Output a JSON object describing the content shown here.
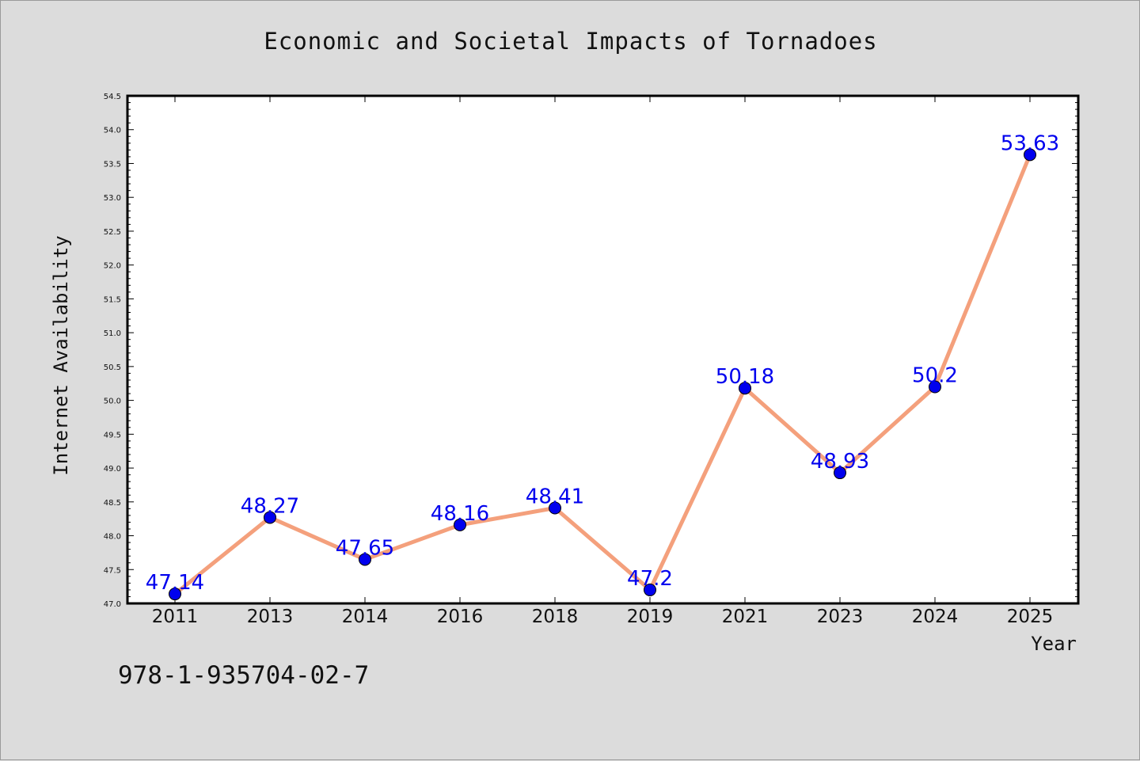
{
  "footer": {
    "code": "978-1-935704-02-7"
  },
  "colors": {
    "background": "#dcdcdc",
    "plot_bg": "#ffffff",
    "line": "#f4a07c",
    "marker": "#0000ee",
    "label": "#0000ee"
  },
  "chart_data": {
    "type": "line",
    "title": "Economic and Societal Impacts of Tornadoes",
    "xlabel": "Year",
    "ylabel": "Internet Availability",
    "categories": [
      "2011",
      "2013",
      "2014",
      "2016",
      "2018",
      "2019",
      "2021",
      "2023",
      "2024",
      "2025"
    ],
    "values": [
      47.14,
      48.27,
      47.65,
      48.16,
      48.41,
      47.2,
      50.18,
      48.93,
      50.2,
      53.63
    ],
    "data_labels": [
      "47.14",
      "48.27",
      "47.65",
      "48.16",
      "48.41",
      "47.2",
      "50.18",
      "48.93",
      "50.2",
      "53.63"
    ],
    "ylim": [
      47.0,
      54.5
    ],
    "yticks": [
      "47.0",
      "47.5",
      "48.0",
      "48.5",
      "49.0",
      "49.5",
      "50.0",
      "50.5",
      "51.0",
      "51.5",
      "52.0",
      "52.5",
      "53.0",
      "53.5",
      "54.0",
      "54.5"
    ],
    "grid": false,
    "legend": "none"
  }
}
